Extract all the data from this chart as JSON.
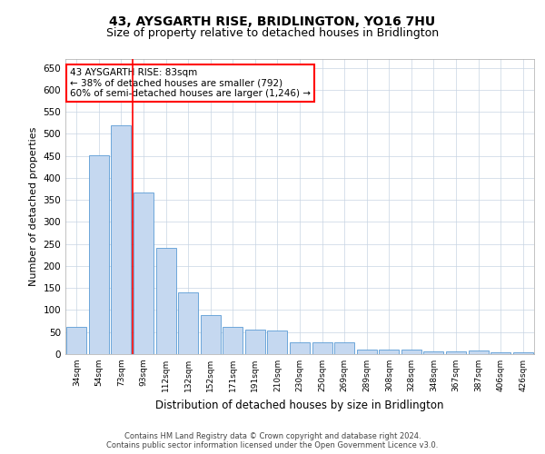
{
  "title": "43, AYSGARTH RISE, BRIDLINGTON, YO16 7HU",
  "subtitle": "Size of property relative to detached houses in Bridlington",
  "xlabel": "Distribution of detached houses by size in Bridlington",
  "ylabel": "Number of detached properties",
  "categories": [
    "34sqm",
    "54sqm",
    "73sqm",
    "93sqm",
    "112sqm",
    "132sqm",
    "152sqm",
    "171sqm",
    "191sqm",
    "210sqm",
    "230sqm",
    "250sqm",
    "269sqm",
    "289sqm",
    "308sqm",
    "328sqm",
    "348sqm",
    "367sqm",
    "387sqm",
    "406sqm",
    "426sqm"
  ],
  "values": [
    62,
    452,
    519,
    367,
    242,
    140,
    88,
    62,
    55,
    53,
    26,
    26,
    26,
    11,
    11,
    11,
    6,
    6,
    9,
    5,
    4
  ],
  "bar_color": "#c5d8f0",
  "bar_edge_color": "#5b9bd5",
  "grid_color": "#c8d4e3",
  "annotation_text": "43 AYSGARTH RISE: 83sqm\n← 38% of detached houses are smaller (792)\n60% of semi-detached houses are larger (1,246) →",
  "vline_position": 2.5,
  "vline_color": "red",
  "annotation_box_color": "white",
  "annotation_box_edgecolor": "red",
  "footnote": "Contains HM Land Registry data © Crown copyright and database right 2024.\nContains public sector information licensed under the Open Government Licence v3.0.",
  "title_fontsize": 10,
  "subtitle_fontsize": 9,
  "xlabel_fontsize": 8.5,
  "ylabel_fontsize": 8,
  "ylim": [
    0,
    670
  ],
  "yticks": [
    0,
    50,
    100,
    150,
    200,
    250,
    300,
    350,
    400,
    450,
    500,
    550,
    600,
    650
  ]
}
